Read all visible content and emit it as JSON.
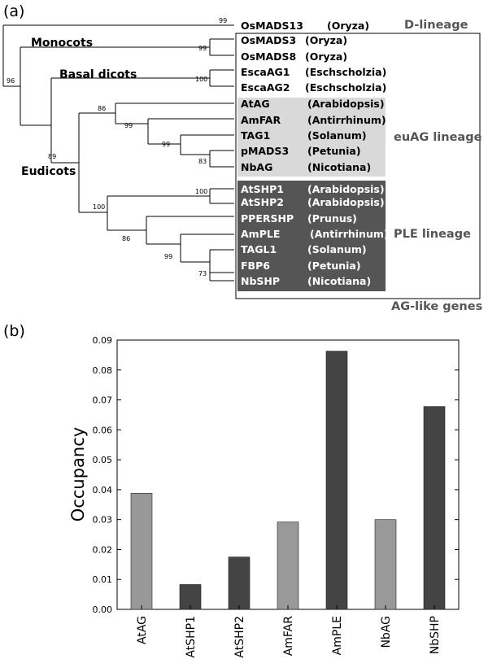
{
  "panel_a": {
    "label": "(a)",
    "outgroup": {
      "gene": "OsMADS13",
      "species": "(Oryza)"
    },
    "d_lineage_label": "D-lineage",
    "ag_like_label": "AG-like genes",
    "clades": {
      "monocots": "Monocots",
      "basal_dicots": "Basal dicots",
      "eudicots": "Eudicots"
    },
    "lineages": {
      "euag": "euAG lineage",
      "ple": "PLE lineage"
    },
    "leaves": [
      {
        "gene": "OsMADS3",
        "species": "(Oryza)"
      },
      {
        "gene": "OsMADS8",
        "species": "(Oryza)"
      },
      {
        "gene": "EscaAG1",
        "species": "(Eschscholzia)"
      },
      {
        "gene": "EscaAG2",
        "species": "(Eschscholzia)"
      },
      {
        "gene": "AtAG",
        "species": "(Arabidopsis)"
      },
      {
        "gene": "AmFAR",
        "species": "(Antirrhinum)"
      },
      {
        "gene": "TAG1",
        "species": "(Solanum)"
      },
      {
        "gene": "pMADS3",
        "species": "(Petunia)"
      },
      {
        "gene": "NbAG",
        "species": "(Nicotiana)"
      },
      {
        "gene": "AtSHP1",
        "species": "(Arabidopsis)"
      },
      {
        "gene": "AtSHP2",
        "species": "(Arabidopsis)"
      },
      {
        "gene": "PPERSHP",
        "species": "(Prunus)"
      },
      {
        "gene": "AmPLE",
        "species": "(Antirrhinum)"
      },
      {
        "gene": "TAGL1",
        "species": "(Solanum)"
      },
      {
        "gene": "FBP6",
        "species": "(Petunia)"
      },
      {
        "gene": "NbSHP",
        "species": "(Nicotiana)"
      }
    ],
    "bootstrap": {
      "outgroup": "99",
      "root": "96",
      "monocots": "99",
      "basal_dicots": "100",
      "eudicots": "89",
      "euag": "86",
      "euag_inner": "99",
      "solanaceae_euag": "99",
      "petunia_nicotiana_euag": "83",
      "ple_lineage": "100",
      "shp": "100",
      "ple_core": "86",
      "solanaceae_ple": "99",
      "petunia_nicotiana_ple": "73"
    },
    "colors": {
      "euag_box": "#d9d9d9",
      "ple_box": "#555555"
    }
  },
  "panel_b": {
    "label": "(b)"
  },
  "chart_data": {
    "type": "bar",
    "categories": [
      "AtAG",
      "AtSHP1",
      "AtSHP2",
      "AmFAR",
      "AmPLE",
      "NbAG",
      "NbSHP"
    ],
    "values": [
      0.0388,
      0.0083,
      0.0175,
      0.0292,
      0.0863,
      0.03,
      0.0678
    ],
    "lineage_of_category": [
      "euAG",
      "PLE",
      "PLE",
      "euAG",
      "PLE",
      "euAG",
      "PLE"
    ],
    "colors": {
      "euAG": "#999999",
      "PLE": "#444444"
    },
    "title": "",
    "xlabel": "",
    "ylabel": "Occupancy",
    "ylim": [
      0,
      0.09
    ],
    "yticks": [
      "0.00",
      "0.01",
      "0.02",
      "0.03",
      "0.04",
      "0.05",
      "0.06",
      "0.07",
      "0.08",
      "0.09"
    ],
    "grid": false,
    "legend": "none"
  }
}
